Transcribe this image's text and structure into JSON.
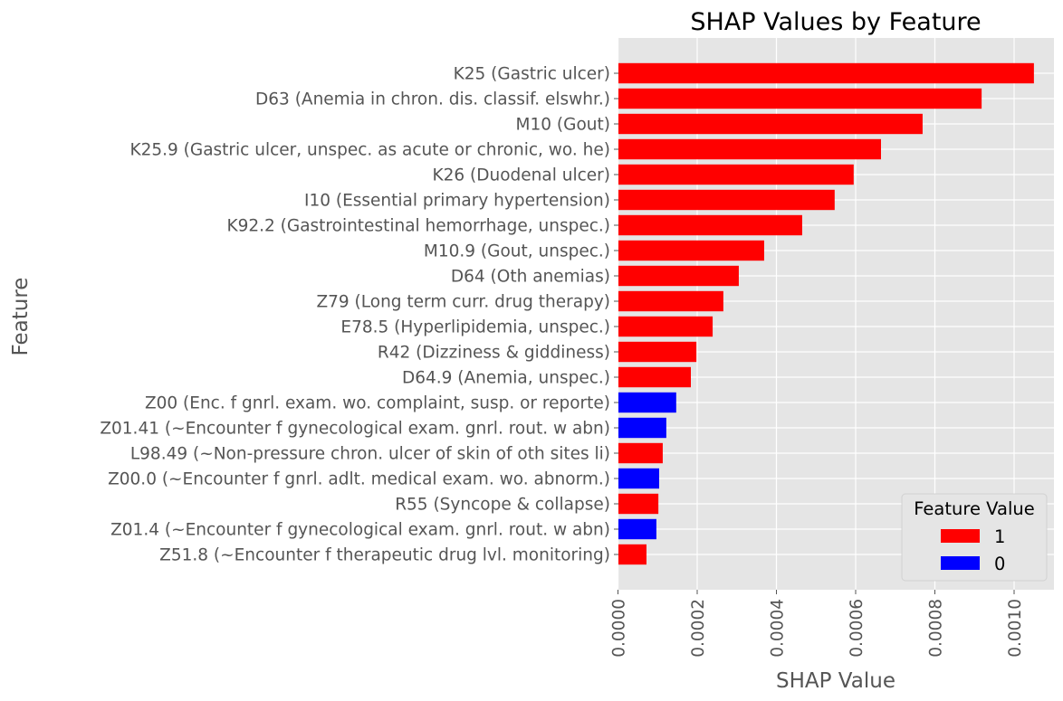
{
  "chart_data": {
    "type": "bar",
    "orientation": "horizontal",
    "title": "SHAP Values by Feature",
    "xlabel": "SHAP Value",
    "ylabel": "Feature",
    "xlim": [
      0,
      0.0011
    ],
    "xticks": [
      "0.0000",
      "0.0002",
      "0.0004",
      "0.0006",
      "0.0008",
      "0.0010"
    ],
    "xtick_values": [
      0,
      0.0002,
      0.0004,
      0.0006,
      0.0008,
      0.001
    ],
    "grid": true,
    "legend": {
      "title": "Feature Value",
      "placement": "lower-right",
      "entries": [
        {
          "label": "1",
          "color": "#ff0000"
        },
        {
          "label": "0",
          "color": "#0000ff"
        }
      ]
    },
    "categories": [
      "K25 (Gastric ulcer)",
      "D63 (Anemia in chron. dis. classif. elswhr.)",
      "M10 (Gout)",
      "K25.9 (Gastric ulcer, unspec. as acute or chronic, wo. he)",
      "K26 (Duodenal ulcer)",
      "I10 (Essential primary hypertension)",
      "K92.2 (Gastrointestinal hemorrhage, unspec.)",
      "M10.9 (Gout, unspec.)",
      "D64 (Oth anemias)",
      "Z79 (Long term curr. drug therapy)",
      "E78.5 (Hyperlipidemia, unspec.)",
      "R42 (Dizziness & giddiness)",
      "D64.9 (Anemia, unspec.)",
      "Z00 (Enc. f gnrl. exam. wo. complaint, susp. or reporte)",
      "Z01.41 (~Encounter f gynecological exam. gnrl. rout. w abn)",
      "L98.49 (~Non-pressure chron. ulcer of skin of oth sites li)",
      "Z00.0 (~Encounter f gnrl. adlt. medical exam. wo. abnorm.)",
      "R55 (Syncope & collapse)",
      "Z01.4 (~Encounter f gynecological exam. gnrl. rout. w abn)",
      "Z51.8 (~Encounter f therapeutic drug lvl. monitoring)"
    ],
    "values": [
      0.00105,
      0.000918,
      0.000769,
      0.000664,
      0.000595,
      0.000547,
      0.000465,
      0.000369,
      0.000305,
      0.000266,
      0.000239,
      0.000198,
      0.000184,
      0.000147,
      0.000122,
      0.000113,
      0.000104,
      0.000102,
      9.7e-05,
      7.2e-05
    ],
    "feature_values": [
      "1",
      "1",
      "1",
      "1",
      "1",
      "1",
      "1",
      "1",
      "1",
      "1",
      "1",
      "1",
      "1",
      "0",
      "0",
      "1",
      "0",
      "1",
      "0",
      "1"
    ],
    "colors": {
      "1": "#ff0000",
      "0": "#0000ff",
      "background": "#e5e5e5",
      "grid": "#ffffff"
    }
  }
}
